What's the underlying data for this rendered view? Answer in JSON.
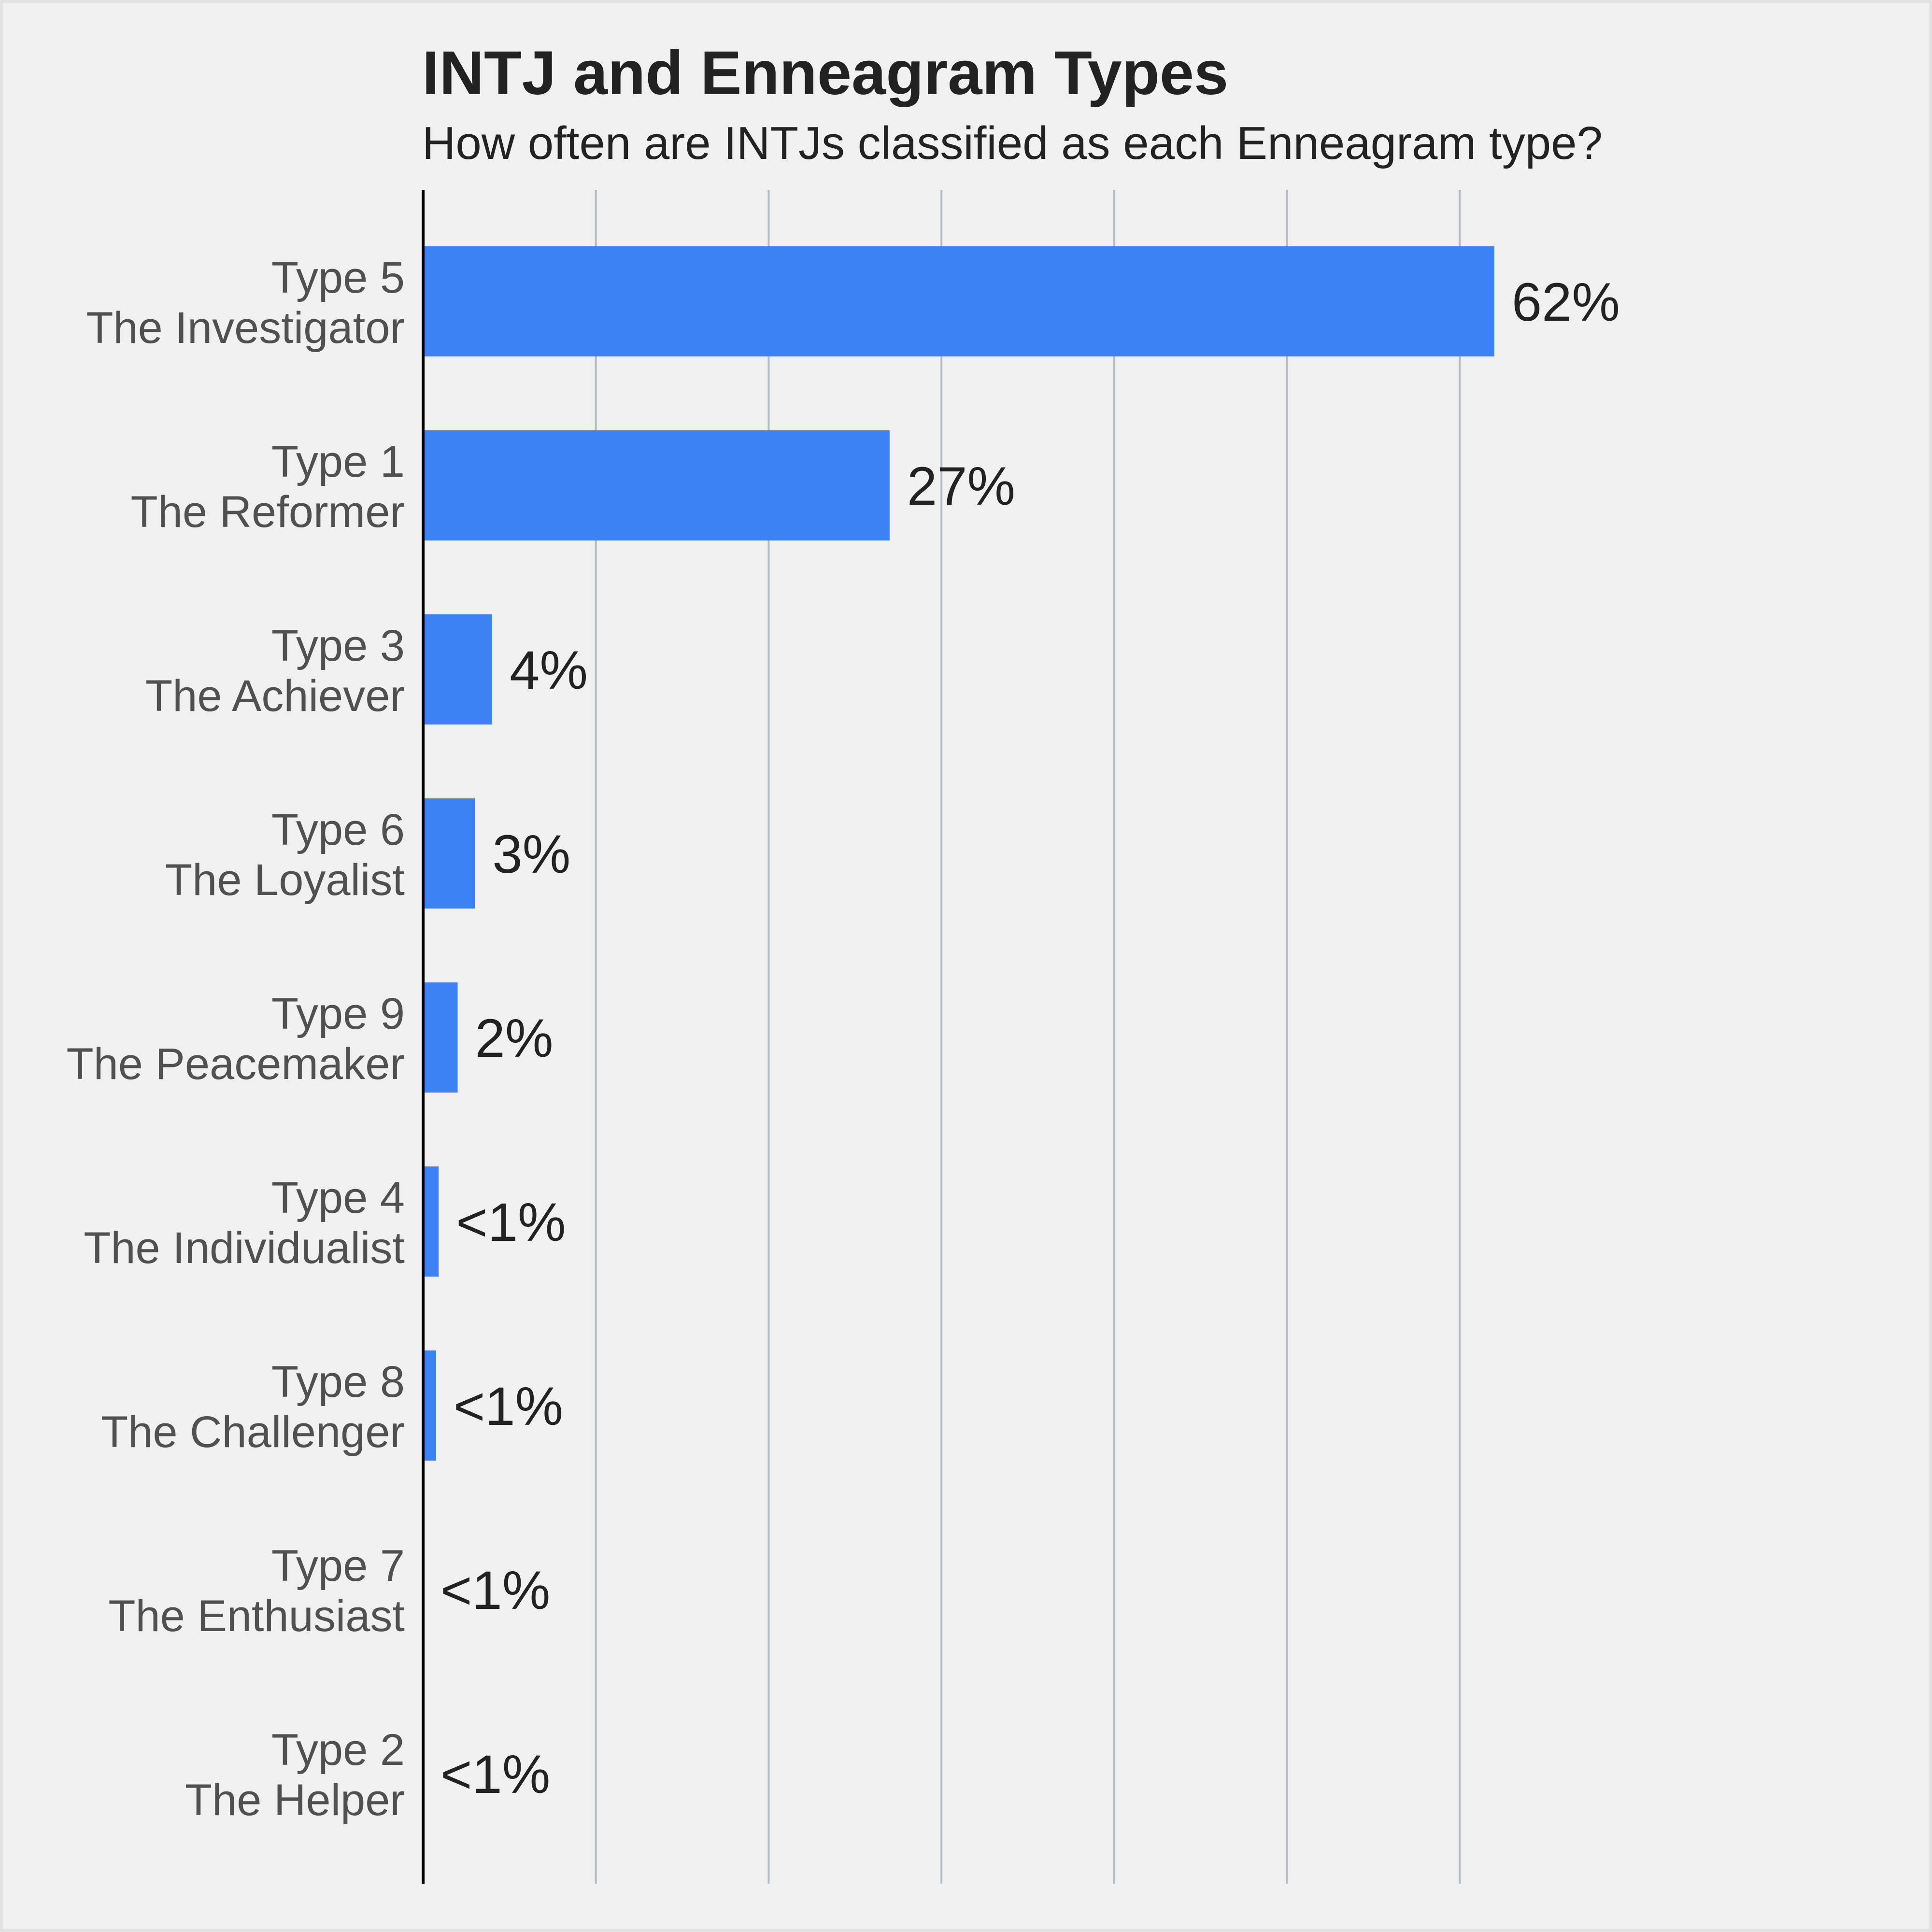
{
  "title": "INTJ and Enneagram Types",
  "subtitle": "How often are INTJs classified as each Enneagram type?",
  "colors": {
    "background": "#f0f0f0",
    "bar": "#3d82f5",
    "grid": "#b3bcc6",
    "axis": "#000000",
    "category_text": "#505050",
    "value_text": "#222222"
  },
  "chart_data": {
    "type": "bar",
    "orientation": "horizontal",
    "categories": [
      [
        "Type 5",
        "The Investigator"
      ],
      [
        "Type 1",
        "The Reformer"
      ],
      [
        "Type 3",
        "The Achiever"
      ],
      [
        "Type 6",
        "The Loyalist"
      ],
      [
        "Type 9",
        "The Peacemaker"
      ],
      [
        "Type 4",
        "The Individualist"
      ],
      [
        "Type 8",
        "The Challenger"
      ],
      [
        "Type 7",
        "The Enthusiast"
      ],
      [
        "Type 2",
        "The Helper"
      ]
    ],
    "values": [
      62,
      27,
      4,
      3,
      2,
      0.9,
      0.75,
      0,
      0
    ],
    "value_labels": [
      "62%",
      "27%",
      "4%",
      "3%",
      "2%",
      "<1%",
      "<1%",
      "<1%",
      "<1%"
    ],
    "xlim": [
      0,
      70
    ],
    "grid": "vertical, every 10",
    "xlabel": "",
    "ylabel": ""
  }
}
